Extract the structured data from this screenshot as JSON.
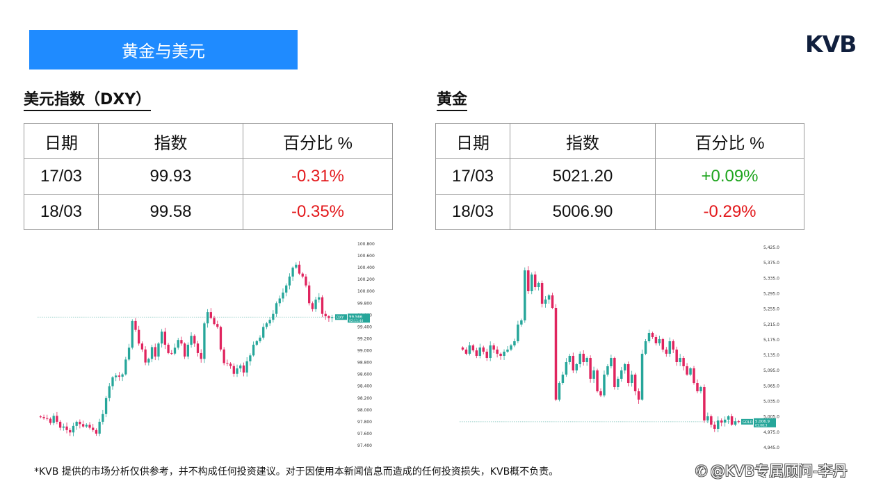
{
  "header": {
    "banner_title": "黄金与美元",
    "logo_text": "KVB"
  },
  "dxy": {
    "title": "美元指数（DXY）",
    "columns": [
      "日期",
      "指数",
      "百分比 %"
    ],
    "rows": [
      {
        "date": "17/03",
        "value": "99.93",
        "change": "-0.31%"
      },
      {
        "date": "18/03",
        "value": "99.58",
        "change": "-0.35%"
      }
    ]
  },
  "gold": {
    "title": "黄金",
    "columns": [
      "日期",
      "指数",
      "百分比 %"
    ],
    "rows": [
      {
        "date": "17/03",
        "value": "5021.20",
        "change": "+0.09%"
      },
      {
        "date": "18/03",
        "value": "5006.90",
        "change": "-0.29%"
      }
    ]
  },
  "colors": {
    "banner": "#1f8bff",
    "up": "#26a69a",
    "down": "#e0245e",
    "negative_text": "#e3191c",
    "positive_text": "#1ea51e"
  },
  "chart_data": [
    {
      "type": "candlestick",
      "symbol_label": "DXY",
      "last_price_label": "99.566",
      "countdown_label": "02:11:44",
      "yticks": [
        "100.800",
        "100.600",
        "100.400",
        "100.200",
        "100.000",
        "99.800",
        "99.600",
        "99.400",
        "99.200",
        "99.000",
        "98.800",
        "98.600",
        "98.400",
        "98.200",
        "98.000",
        "97.800",
        "97.600",
        "97.400"
      ],
      "ylim": [
        97.4,
        100.8
      ],
      "last_price": 99.566,
      "close": [
        97.88,
        97.86,
        97.85,
        97.78,
        97.9,
        97.8,
        97.7,
        97.72,
        97.66,
        97.62,
        97.73,
        97.8,
        97.76,
        97.72,
        97.75,
        97.7,
        97.66,
        97.6,
        97.8,
        97.93,
        98.2,
        98.4,
        98.55,
        98.58,
        98.56,
        98.6,
        98.85,
        99.05,
        99.5,
        99.35,
        99.12,
        99.02,
        98.8,
        98.86,
        99.06,
        98.9,
        99.12,
        99.32,
        99.1,
        98.96,
        98.95,
        99.05,
        99.18,
        99.12,
        98.9,
        99.1,
        99.25,
        99.12,
        98.96,
        98.86,
        99.46,
        99.65,
        99.55,
        99.45,
        99.4,
        99.02,
        98.79,
        98.78,
        98.74,
        98.61,
        98.7,
        98.75,
        98.63,
        98.82,
        98.92,
        99.1,
        99.16,
        99.22,
        99.4,
        99.46,
        99.52,
        99.62,
        99.8,
        99.88,
        99.98,
        100.1,
        100.25,
        100.4,
        100.45,
        100.3,
        100.25,
        100.1,
        99.8,
        99.7,
        99.86,
        99.9,
        99.62,
        99.58,
        99.55,
        99.566
      ]
    },
    {
      "type": "candlestick",
      "symbol_label": "GOLD",
      "last_price_label": "5,006.9",
      "countdown_label": "01:08:3",
      "yticks": [
        "5,425.0",
        "5,375.0",
        "5,335.0",
        "5,295.0",
        "5,255.0",
        "5,215.0",
        "5,175.0",
        "5,135.0",
        "5,095.0",
        "5,065.0",
        "5,035.0",
        "5,005.0",
        "4,975.0",
        "4,945.0"
      ],
      "ylim": [
        4945,
        5425
      ],
      "last_price": 5006.9,
      "close": [
        5180,
        5170,
        5190,
        5178,
        5165,
        5185,
        5175,
        5160,
        5190,
        5180,
        5170,
        5165,
        5175,
        5180,
        5190,
        5200,
        5240,
        5250,
        5370,
        5320,
        5360,
        5330,
        5340,
        5290,
        5300,
        5310,
        5280,
        5060,
        5100,
        5120,
        5150,
        5165,
        5130,
        5145,
        5170,
        5150,
        5160,
        5110,
        5130,
        5080,
        5070,
        5120,
        5140,
        5160,
        5090,
        5110,
        5130,
        5145,
        5100,
        5120,
        5080,
        5060,
        5170,
        5200,
        5220,
        5210,
        5195,
        5205,
        5180,
        5170,
        5200,
        5180,
        5150,
        5160,
        5140,
        5120,
        5135,
        5100,
        5080,
        5090,
        5010,
        5020,
        5000,
        4990,
        5010,
        5005,
        5012,
        5020,
        5000,
        5008,
        5006.9
      ]
    }
  ],
  "footer": {
    "disclaimer": "*KVB 提供的市场分析仅供参考，并不构成任何投资建议。对于因使用本新闻信息而造成的任何投资损失，KVB概不负责。",
    "watermark": "@KVB专属顾问-李丹"
  }
}
